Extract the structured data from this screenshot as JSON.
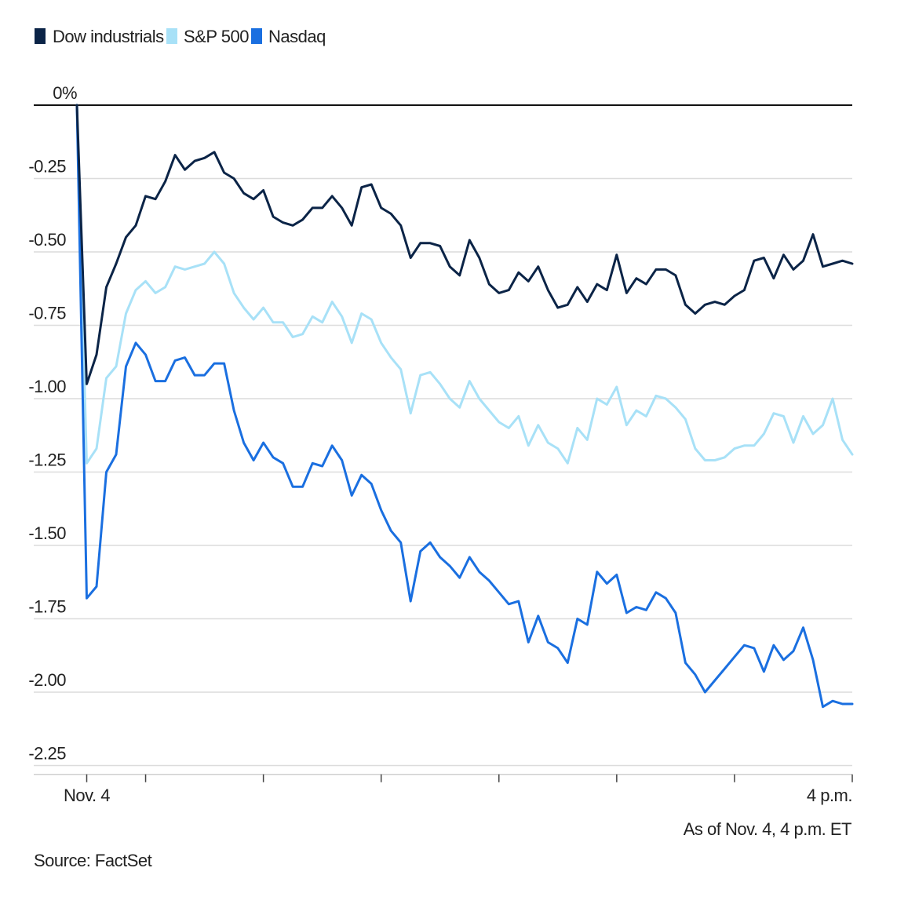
{
  "chart_data": {
    "type": "line",
    "title": "",
    "xlabel": "",
    "ylabel": "",
    "ylim": [
      -2.28,
      0
    ],
    "y_ticks": [
      {
        "value": 0,
        "label": "0%"
      },
      {
        "value": -0.25,
        "label": "-0.25"
      },
      {
        "value": -0.5,
        "label": "-0.50"
      },
      {
        "value": -0.75,
        "label": "-0.75"
      },
      {
        "value": -1.0,
        "label": "-1.00"
      },
      {
        "value": -1.25,
        "label": "-1.25"
      },
      {
        "value": -1.5,
        "label": "-1.50"
      },
      {
        "value": -1.75,
        "label": "-1.75"
      },
      {
        "value": -2.0,
        "label": "-2.00"
      },
      {
        "value": -2.25,
        "label": "-2.25"
      }
    ],
    "x_ticks": [
      {
        "value": 0,
        "label": "Nov. 4"
      },
      {
        "value": 6,
        "label": ""
      },
      {
        "value": 18,
        "label": ""
      },
      {
        "value": 30,
        "label": ""
      },
      {
        "value": 42,
        "label": ""
      },
      {
        "value": 54,
        "label": ""
      },
      {
        "value": 66,
        "label": ""
      },
      {
        "value": 78,
        "label": "4 p.m."
      }
    ],
    "x": [
      -1,
      0,
      1,
      2,
      3,
      4,
      5,
      6,
      7,
      8,
      9,
      10,
      11,
      12,
      13,
      14,
      15,
      16,
      17,
      18,
      19,
      20,
      21,
      22,
      23,
      24,
      25,
      26,
      27,
      28,
      29,
      30,
      31,
      32,
      33,
      34,
      35,
      36,
      37,
      38,
      39,
      40,
      41,
      42,
      43,
      44,
      45,
      46,
      47,
      48,
      49,
      50,
      51,
      52,
      53,
      54,
      55,
      56,
      57,
      58,
      59,
      60,
      61,
      62,
      63,
      64,
      65,
      66,
      67,
      68,
      69,
      70,
      71,
      72,
      73,
      74,
      75,
      76,
      77,
      78
    ],
    "series": [
      {
        "name": "Dow industrials",
        "color": "#0b2447",
        "values": [
          0,
          -0.95,
          -0.85,
          -0.62,
          -0.54,
          -0.45,
          -0.41,
          -0.31,
          -0.32,
          -0.26,
          -0.17,
          -0.22,
          -0.19,
          -0.18,
          -0.16,
          -0.23,
          -0.25,
          -0.3,
          -0.32,
          -0.29,
          -0.38,
          -0.4,
          -0.41,
          -0.39,
          -0.35,
          -0.35,
          -0.31,
          -0.35,
          -0.41,
          -0.28,
          -0.27,
          -0.35,
          -0.37,
          -0.41,
          -0.52,
          -0.47,
          -0.47,
          -0.48,
          -0.55,
          -0.58,
          -0.46,
          -0.52,
          -0.61,
          -0.64,
          -0.63,
          -0.57,
          -0.6,
          -0.55,
          -0.63,
          -0.69,
          -0.68,
          -0.62,
          -0.67,
          -0.61,
          -0.63,
          -0.51,
          -0.64,
          -0.59,
          -0.61,
          -0.56,
          -0.56,
          -0.58,
          -0.68,
          -0.71,
          -0.68,
          -0.67,
          -0.68,
          -0.65,
          -0.63,
          -0.53,
          -0.52,
          -0.59,
          -0.51,
          -0.56,
          -0.53,
          -0.44,
          -0.55,
          -0.54,
          -0.53,
          -0.54
        ]
      },
      {
        "name": "S&P 500",
        "color": "#a8e1f7",
        "values": [
          0,
          -1.22,
          -1.17,
          -0.93,
          -0.89,
          -0.71,
          -0.63,
          -0.6,
          -0.64,
          -0.62,
          -0.55,
          -0.56,
          -0.55,
          -0.54,
          -0.5,
          -0.54,
          -0.64,
          -0.69,
          -0.73,
          -0.69,
          -0.74,
          -0.74,
          -0.79,
          -0.78,
          -0.72,
          -0.74,
          -0.67,
          -0.72,
          -0.81,
          -0.71,
          -0.73,
          -0.81,
          -0.86,
          -0.9,
          -1.05,
          -0.92,
          -0.91,
          -0.95,
          -1.0,
          -1.03,
          -0.94,
          -1.0,
          -1.04,
          -1.08,
          -1.1,
          -1.06,
          -1.16,
          -1.09,
          -1.15,
          -1.17,
          -1.22,
          -1.1,
          -1.14,
          -1.0,
          -1.02,
          -0.96,
          -1.09,
          -1.04,
          -1.06,
          -0.99,
          -1.0,
          -1.03,
          -1.07,
          -1.17,
          -1.21,
          -1.21,
          -1.2,
          -1.17,
          -1.16,
          -1.16,
          -1.12,
          -1.05,
          -1.06,
          -1.15,
          -1.06,
          -1.12,
          -1.09,
          -1.0,
          -1.14,
          -1.19
        ]
      },
      {
        "name": "Nasdaq",
        "color": "#1a6fe0",
        "values": [
          0,
          -1.68,
          -1.64,
          -1.25,
          -1.19,
          -0.89,
          -0.81,
          -0.85,
          -0.94,
          -0.94,
          -0.87,
          -0.86,
          -0.92,
          -0.92,
          -0.88,
          -0.88,
          -1.04,
          -1.15,
          -1.21,
          -1.15,
          -1.2,
          -1.22,
          -1.3,
          -1.3,
          -1.22,
          -1.23,
          -1.16,
          -1.21,
          -1.33,
          -1.26,
          -1.29,
          -1.38,
          -1.45,
          -1.49,
          -1.69,
          -1.52,
          -1.49,
          -1.54,
          -1.57,
          -1.61,
          -1.54,
          -1.59,
          -1.62,
          -1.66,
          -1.7,
          -1.69,
          -1.83,
          -1.74,
          -1.83,
          -1.85,
          -1.9,
          -1.75,
          -1.77,
          -1.59,
          -1.63,
          -1.6,
          -1.73,
          -1.71,
          -1.72,
          -1.66,
          -1.68,
          -1.73,
          -1.9,
          -1.94,
          -2.0,
          -1.96,
          -1.92,
          -1.88,
          -1.84,
          -1.85,
          -1.93,
          -1.84,
          -1.89,
          -1.86,
          -1.78,
          -1.89,
          -2.05,
          -2.03,
          -2.04,
          -2.04
        ]
      }
    ],
    "notes": {
      "as_of": "As of Nov. 4, 4 p.m. ET",
      "source": "Source: FactSet"
    }
  }
}
